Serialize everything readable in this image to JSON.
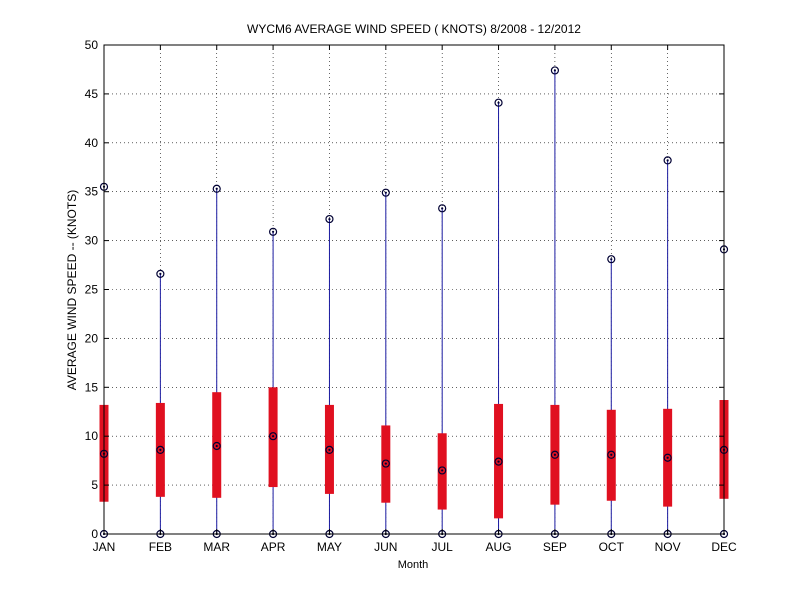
{
  "chart_data": {
    "type": "box",
    "title": "WYCM6  AVERAGE WIND SPEED ( KNOTS) 8/2008 - 12/2012",
    "xlabel": "Month",
    "ylabel": "AVERAGE WIND SPEED -- (KNOTS)",
    "ylim": [
      0,
      50
    ],
    "yticks": [
      "0",
      "5",
      "10",
      "15",
      "20",
      "25",
      "30",
      "35",
      "40",
      "45",
      "50"
    ],
    "grid": true,
    "categories": [
      "JAN",
      "FEB",
      "MAR",
      "APR",
      "MAY",
      "JUN",
      "JUL",
      "AUG",
      "SEP",
      "OCT",
      "NOV",
      "DEC"
    ],
    "min": [
      0,
      0,
      0,
      0,
      0,
      0,
      0,
      0,
      0,
      0,
      0,
      0
    ],
    "q1": [
      3.3,
      3.8,
      3.7,
      4.8,
      4.1,
      3.2,
      2.5,
      1.6,
      3.0,
      3.4,
      2.8,
      3.6
    ],
    "median": [
      8.2,
      8.6,
      9.0,
      10.0,
      8.6,
      7.2,
      6.5,
      7.4,
      8.1,
      8.1,
      7.8,
      8.6
    ],
    "q3": [
      13.2,
      13.4,
      14.5,
      15.0,
      13.2,
      11.1,
      10.3,
      13.3,
      13.2,
      12.7,
      12.8,
      13.7
    ],
    "max": [
      35.5,
      26.6,
      35.3,
      30.9,
      32.2,
      34.9,
      33.3,
      44.1,
      47.4,
      28.1,
      38.2,
      29.1
    ],
    "colors": {
      "box": "#e01020",
      "whisker": "#1a1aa0",
      "marker": "#000033",
      "grid": "#000000"
    }
  }
}
